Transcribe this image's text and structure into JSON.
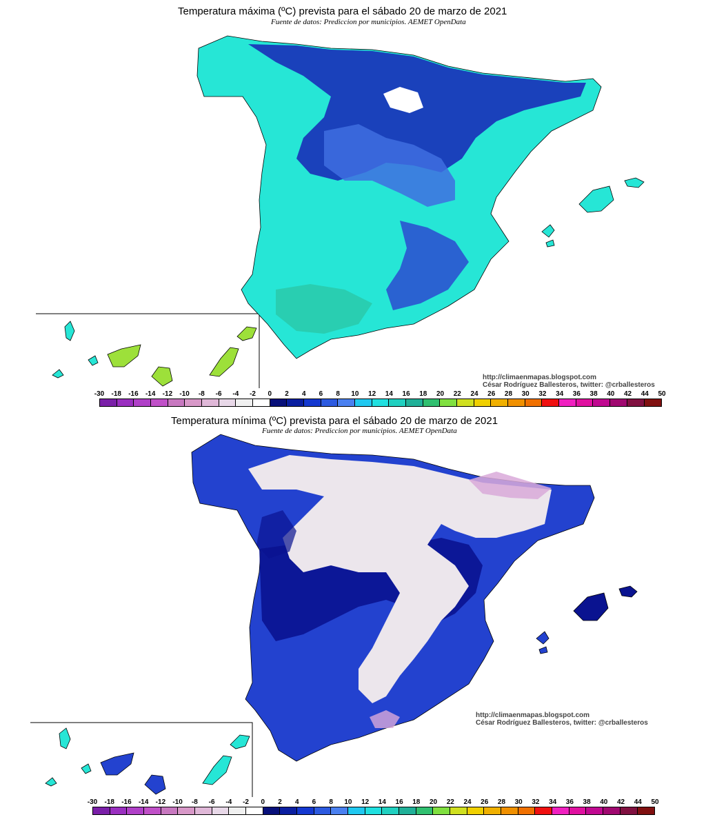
{
  "panels": [
    {
      "title": "Temperatura máxima (ºC) prevista para el sábado 20 de marzo de 2021",
      "subtitle": "Fuente de datos: Prediccion por municipios. AEMET OpenData",
      "credit_url": "http://climaenmapas.blogspot.com",
      "credit_author": "César Rodríguez Ballesteros, twitter: @crballesteros",
      "colors": {
        "peninsula": "#26e6d6",
        "north": "#1a2fb8",
        "snow": "#ffffff",
        "canarias": "#9de03a",
        "lowlands": "#2bd4b4"
      }
    },
    {
      "title": "Temperatura mínima (ºC) prevista para el sábado 20 de marzo de 2021",
      "subtitle": "Fuente de datos: Prediccion por municipios. AEMET OpenData",
      "credit_url": "http://climaenmapas.blogspot.com",
      "credit_author": "César Rodríguez Ballesteros, twitter: @crballesteros",
      "colors": {
        "peninsula": "#2342cf",
        "north": "#0a1390",
        "interior": "#ece6ec",
        "pink": "#d9a9d9",
        "canarias": "#26e6d6"
      }
    }
  ],
  "legend": {
    "labels": [
      "-30",
      "-18",
      "-16",
      "-14",
      "-12",
      "-10",
      "-8",
      "-6",
      "-4",
      "-2",
      "0",
      "2",
      "4",
      "6",
      "8",
      "10",
      "12",
      "14",
      "16",
      "18",
      "20",
      "22",
      "24",
      "26",
      "28",
      "30",
      "32",
      "34",
      "36",
      "38",
      "40",
      "42",
      "44",
      "50"
    ],
    "colors": [
      "#7a1fa8",
      "#9a2fc0",
      "#b040c8",
      "#c050c8",
      "#c878c0",
      "#d898c8",
      "#e0b8d8",
      "#e8d8e8",
      "#f0f0f0",
      "#ffffff",
      "#08107a",
      "#0a1ea0",
      "#1438d0",
      "#2c5ae0",
      "#4a80f0",
      "#20c8f0",
      "#20e0e0",
      "#20d0c0",
      "#20b098",
      "#30c070",
      "#80e040",
      "#d0e020",
      "#f0d000",
      "#f0b000",
      "#f09000",
      "#f07000",
      "#f01010",
      "#f020c0",
      "#e010a0",
      "#c00890",
      "#a00870",
      "#801040",
      "#801010"
    ]
  }
}
